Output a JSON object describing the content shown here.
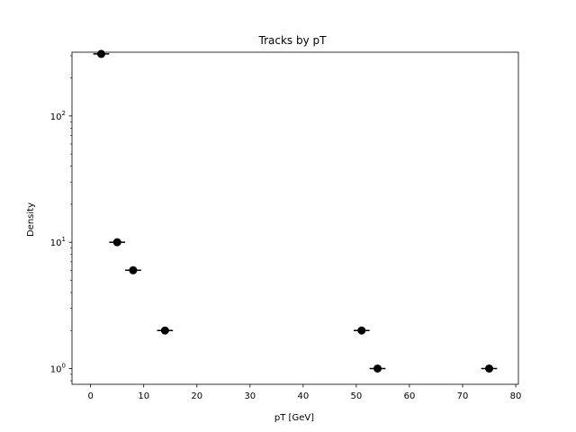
{
  "chart_data": {
    "type": "scatter",
    "title": "Tracks by pT",
    "xlabel": "pT [GeV]",
    "ylabel": "Density",
    "xlim": [
      -3.5,
      80.5
    ],
    "ylim": [
      0.75,
      320
    ],
    "yscale": "log",
    "grid": false,
    "x_ticks": [
      0,
      10,
      20,
      30,
      40,
      50,
      60,
      70,
      80
    ],
    "y_ticks": [
      {
        "value": 1,
        "base": "10",
        "exp": "0"
      },
      {
        "value": 10,
        "base": "10",
        "exp": "1"
      },
      {
        "value": 100,
        "base": "10",
        "exp": "2"
      }
    ],
    "points": [
      {
        "x": 2.0,
        "y": 310,
        "xerr": 1.5
      },
      {
        "x": 5.0,
        "y": 10,
        "xerr": 1.5
      },
      {
        "x": 8.0,
        "y": 6,
        "xerr": 1.5
      },
      {
        "x": 14.0,
        "y": 2,
        "xerr": 1.5
      },
      {
        "x": 51.0,
        "y": 2,
        "xerr": 1.5
      },
      {
        "x": 54.0,
        "y": 1,
        "xerr": 1.5
      },
      {
        "x": 75.0,
        "y": 1,
        "xerr": 1.5
      }
    ],
    "marker_color": "#000000"
  }
}
